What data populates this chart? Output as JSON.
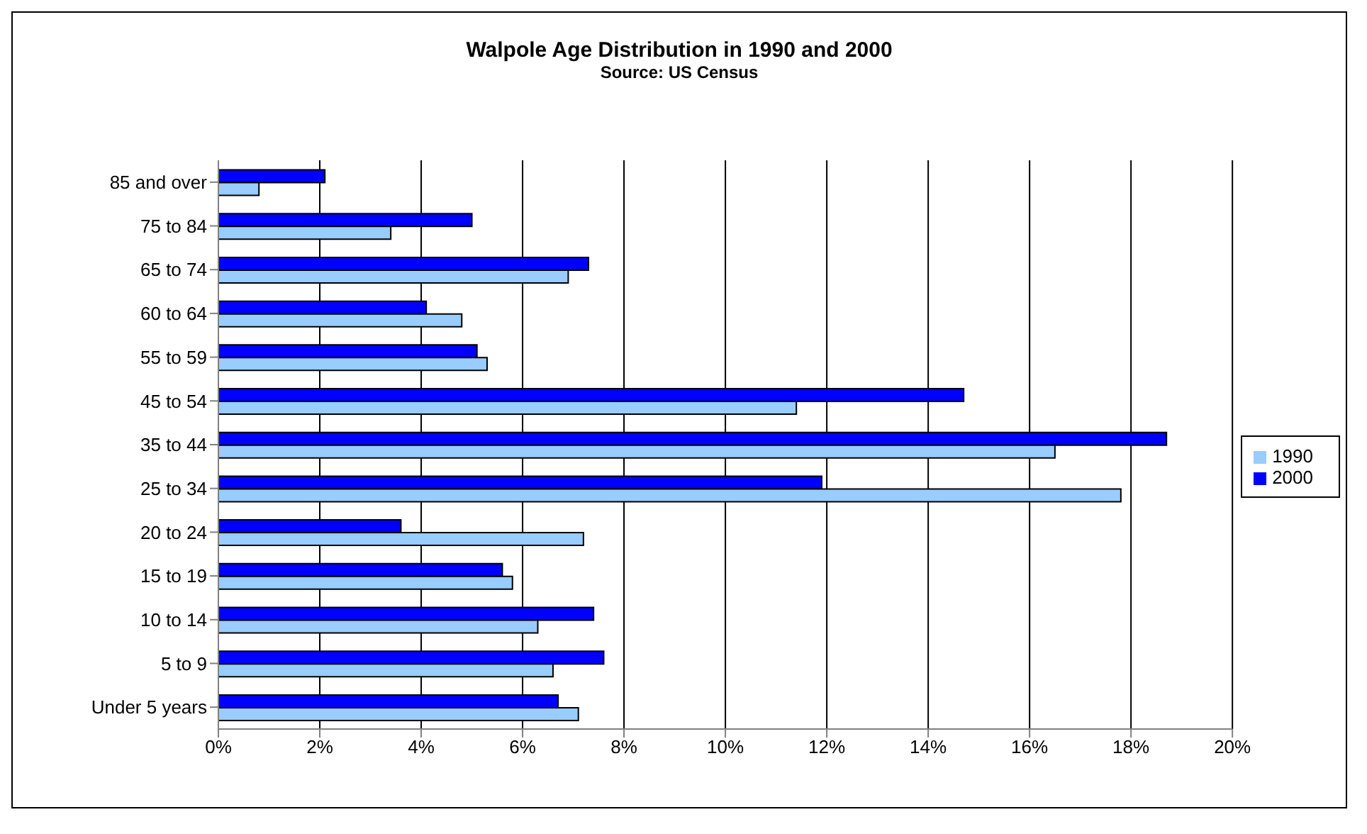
{
  "chart_data": {
    "type": "bar",
    "orientation": "horizontal",
    "title": "Walpole Age Distribution in 1990 and 2000",
    "subtitle": "Source: US Census",
    "categories": [
      "85 and over",
      "75 to 84",
      "65 to 74",
      "60 to 64",
      "55 to 59",
      "45 to 54",
      "35 to 44",
      "25 to 34",
      "20 to 24",
      "15 to 19",
      "10 to 14",
      "5 to 9",
      "Under 5 years"
    ],
    "series": [
      {
        "name": "2000",
        "color": "#0000ff",
        "values": [
          2.1,
          5.0,
          7.3,
          4.1,
          5.1,
          14.7,
          18.7,
          11.9,
          3.6,
          5.6,
          7.4,
          7.6,
          6.7
        ]
      },
      {
        "name": "1990",
        "color": "#99ccff",
        "values": [
          0.8,
          3.4,
          6.9,
          4.8,
          5.3,
          11.4,
          16.5,
          17.8,
          7.2,
          5.8,
          6.3,
          6.6,
          7.1
        ]
      }
    ],
    "xlim": [
      0,
      20
    ],
    "xticks": [
      {
        "value": 0,
        "label": "0%"
      },
      {
        "value": 2,
        "label": "2%"
      },
      {
        "value": 4,
        "label": "4%"
      },
      {
        "value": 6,
        "label": "6%"
      },
      {
        "value": 8,
        "label": "8%"
      },
      {
        "value": 10,
        "label": "10%"
      },
      {
        "value": 12,
        "label": "12%"
      },
      {
        "value": 14,
        "label": "14%"
      },
      {
        "value": 16,
        "label": "16%"
      },
      {
        "value": 18,
        "label": "18%"
      },
      {
        "value": 20,
        "label": "20%"
      }
    ],
    "grid": "x",
    "legend": "right"
  }
}
